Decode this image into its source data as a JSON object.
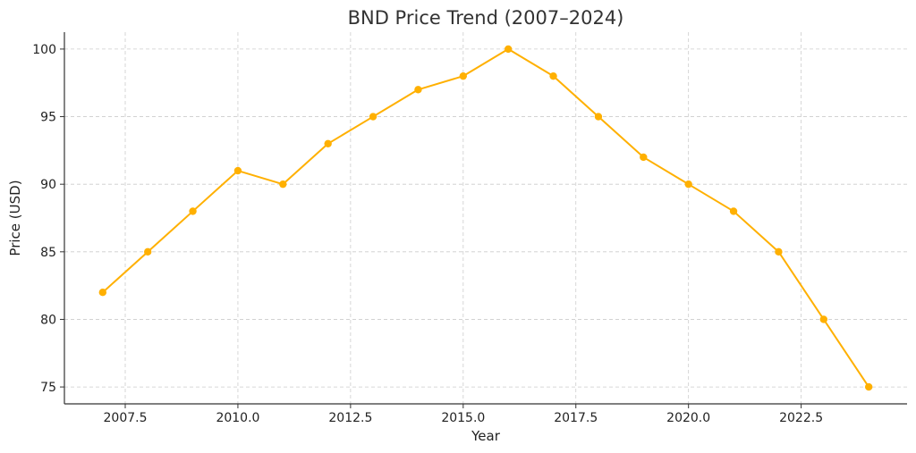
{
  "chart_data": {
    "type": "line",
    "title": "BND Price Trend (2007–2024)",
    "xlabel": "Year",
    "ylabel": "Price (USD)",
    "x": [
      2007,
      2008,
      2009,
      2010,
      2011,
      2012,
      2013,
      2014,
      2015,
      2016,
      2017,
      2018,
      2019,
      2020,
      2021,
      2022,
      2023,
      2024
    ],
    "series": [
      {
        "values": [
          82,
          85,
          88,
          91,
          90,
          93,
          95,
          97,
          98,
          100,
          98,
          95,
          92,
          90,
          88,
          85,
          80,
          75
        ],
        "color": "#FFB000"
      }
    ],
    "xlim": [
      2006.15,
      2024.85
    ],
    "ylim": [
      73.75,
      101.25
    ],
    "x_ticks": [
      2007.5,
      2010.0,
      2012.5,
      2015.0,
      2017.5,
      2020.0,
      2022.5
    ],
    "x_tick_labels": [
      "2007.5",
      "2010.0",
      "2012.5",
      "2015.0",
      "2017.5",
      "2020.0",
      "2022.5"
    ],
    "y_ticks": [
      75,
      80,
      85,
      90,
      95,
      100
    ],
    "y_tick_labels": [
      "75",
      "80",
      "85",
      "90",
      "95",
      "100"
    ],
    "grid": true,
    "legend": "none"
  }
}
